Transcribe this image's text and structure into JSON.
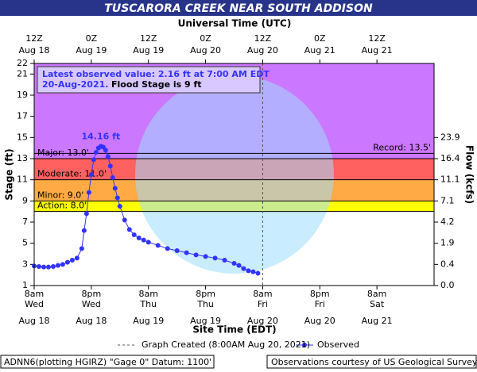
{
  "chart_data": {
    "type": "line",
    "title": "TUSCARORA CREEK NEAR SOUTH ADDISON",
    "x2_axis_label": "Universal Time (UTC)",
    "x_axis_label": "Site Time (EDT)",
    "y_axis_label": "Stage (ft)",
    "y2_axis_label": "Flow (kcfs)",
    "xlim": [
      "Aug 18 08:00",
      "Aug 21 20:00"
    ],
    "xticks": [
      {
        "value": "Aug 18 08:00",
        "label": "8am",
        "day": "Wed",
        "date": "Aug 18"
      },
      {
        "value": "Aug 18 20:00",
        "label": "8pm",
        "day": "Wed",
        "date": "Aug 18"
      },
      {
        "value": "Aug 19 08:00",
        "label": "8am",
        "day": "Thu",
        "date": "Aug 19"
      },
      {
        "value": "Aug 19 20:00",
        "label": "8pm",
        "day": "Thu",
        "date": "Aug 19"
      },
      {
        "value": "Aug 20 08:00",
        "label": "8am",
        "day": "Fri",
        "date": "Aug 20"
      },
      {
        "value": "Aug 20 20:00",
        "label": "8pm",
        "day": "Fri",
        "date": "Aug 20"
      },
      {
        "value": "Aug 21 08:00",
        "label": "8am",
        "day": "Sat",
        "date": "Aug 21"
      }
    ],
    "x2ticks": [
      {
        "value": "Aug 18 08:00",
        "label": "12Z",
        "date": "Aug 18"
      },
      {
        "value": "Aug 18 20:00",
        "label": "0Z",
        "date": "Aug 19"
      },
      {
        "value": "Aug 19 08:00",
        "label": "12Z",
        "date": "Aug 19"
      },
      {
        "value": "Aug 19 20:00",
        "label": "0Z",
        "date": "Aug 20"
      },
      {
        "value": "Aug 20 08:00",
        "label": "12Z",
        "date": "Aug 20"
      },
      {
        "value": "Aug 20 20:00",
        "label": "0Z",
        "date": "Aug 21"
      },
      {
        "value": "Aug 21 08:00",
        "label": "12Z",
        "date": "Aug 21"
      }
    ],
    "ylim": [
      1,
      22
    ],
    "yticks": [
      1,
      3,
      5,
      7,
      9,
      11,
      13,
      15,
      17,
      19,
      21,
      22
    ],
    "y2ticks": [
      {
        "value": 0,
        "label": "0.0"
      },
      0.4,
      1.9,
      4.2,
      7.1,
      11.1,
      16.4,
      23.9
    ],
    "thresholds": [
      {
        "label": "Action: 8.0'",
        "value": 8,
        "color": "#ffff00"
      },
      {
        "label": "Minor: 9.0'",
        "value": 9,
        "color": "#ffaa44"
      },
      {
        "label": "Moderate: 11.0'",
        "value": 11,
        "color": "#ff6060"
      },
      {
        "label": "Major: 13.0'",
        "value": 13,
        "color": "#cc77ff"
      }
    ],
    "record": {
      "label": "Record: 13.5'",
      "value": 13.5
    },
    "latest_line1": "Latest observed value: 2.16 ft at 7:00 AM EDT",
    "latest_line2": "20-Aug-2021.",
    "flood_stage_text": "Flood Stage is 9 ft",
    "peak_label": "14.16 ft",
    "graph_created": {
      "x": "Aug 20 08:00",
      "label": "Graph Created (8:00AM Aug 20, 2021)"
    },
    "series": [
      {
        "name": "Observed",
        "color": "#3333ff",
        "x": [
          "Aug 18 08:00",
          "Aug 18 09:00",
          "Aug 18 10:00",
          "Aug 18 11:00",
          "Aug 18 12:00",
          "Aug 18 13:00",
          "Aug 18 14:00",
          "Aug 18 15:00",
          "Aug 18 16:00",
          "Aug 18 17:00",
          "Aug 18 18:00",
          "Aug 18 18:30",
          "Aug 18 19:00",
          "Aug 18 19:30",
          "Aug 18 20:00",
          "Aug 18 20:30",
          "Aug 18 21:00",
          "Aug 18 21:30",
          "Aug 18 22:00",
          "Aug 18 22:30",
          "Aug 18 23:00",
          "Aug 18 23:30",
          "Aug 19 00:00",
          "Aug 19 00:30",
          "Aug 19 01:00",
          "Aug 19 01:30",
          "Aug 19 02:00",
          "Aug 19 03:00",
          "Aug 19 04:00",
          "Aug 19 05:00",
          "Aug 19 06:00",
          "Aug 19 07:00",
          "Aug 19 08:00",
          "Aug 19 10:00",
          "Aug 19 12:00",
          "Aug 19 14:00",
          "Aug 19 16:00",
          "Aug 19 18:00",
          "Aug 19 20:00",
          "Aug 19 22:00",
          "Aug 20 00:00",
          "Aug 20 02:00",
          "Aug 20 03:00",
          "Aug 20 04:00",
          "Aug 20 05:00",
          "Aug 20 06:00",
          "Aug 20 07:00"
        ],
        "values": [
          2.85,
          2.8,
          2.75,
          2.75,
          2.8,
          2.9,
          3.0,
          3.2,
          3.4,
          3.6,
          4.5,
          6.2,
          7.8,
          9.8,
          11.5,
          12.9,
          13.6,
          14.0,
          14.16,
          14.1,
          13.8,
          13.2,
          12.3,
          11.2,
          10.2,
          9.3,
          8.5,
          7.2,
          6.3,
          5.8,
          5.5,
          5.3,
          5.1,
          4.8,
          4.5,
          4.3,
          4.1,
          3.9,
          3.75,
          3.6,
          3.4,
          3.1,
          2.9,
          2.6,
          2.4,
          2.3,
          2.16
        ]
      }
    ],
    "footer_left": "ADNN6(plotting HGIRZ) \"Gage 0\" Datum: 1100'",
    "footer_right": "Observations courtesy of US Geological Survey"
  }
}
